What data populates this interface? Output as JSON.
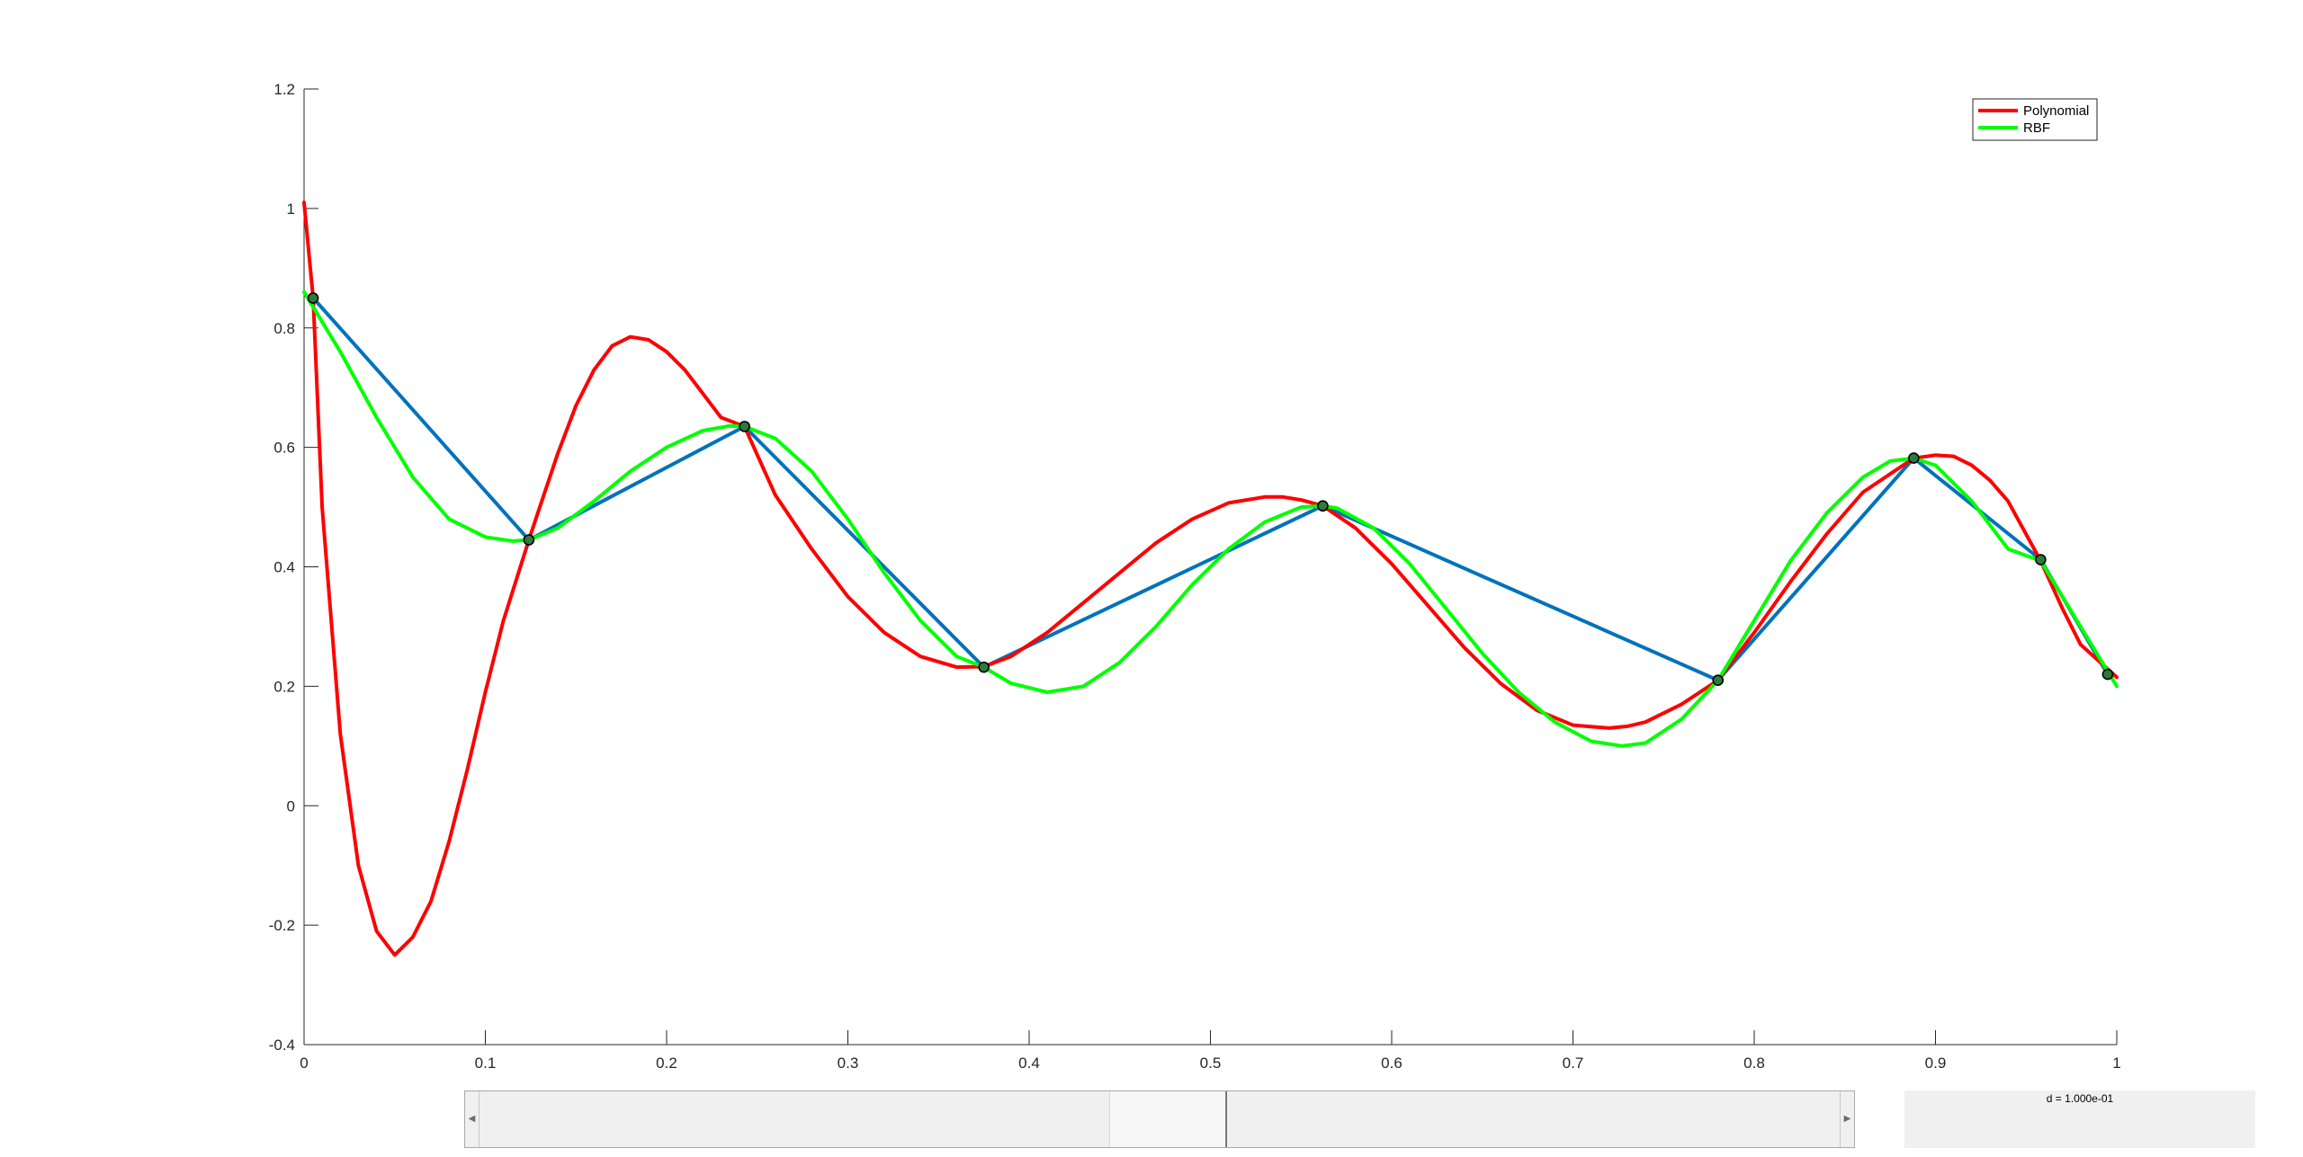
{
  "chart_data": {
    "type": "line",
    "title": "",
    "xlabel": "",
    "ylabel": "",
    "xlim": [
      0,
      1
    ],
    "ylim": [
      -0.4,
      1.2
    ],
    "xticks": [
      "0",
      "0.1",
      "0.2",
      "0.3",
      "0.4",
      "0.5",
      "0.6",
      "0.7",
      "0.8",
      "0.9",
      "1"
    ],
    "yticks": [
      "-0.4",
      "-0.2",
      "0",
      "0.2",
      "0.4",
      "0.6",
      "0.8",
      "1",
      "1.2"
    ],
    "grid": false,
    "legend": {
      "placement": "top-right",
      "entries": [
        "Polynomial",
        "RBF"
      ]
    },
    "series": [
      {
        "name": "Polynomial",
        "color": "#ff0000",
        "x": [
          0,
          0.005,
          0.01,
          0.02,
          0.03,
          0.04,
          0.05,
          0.06,
          0.07,
          0.08,
          0.09,
          0.1,
          0.11,
          0.124,
          0.13,
          0.14,
          0.15,
          0.16,
          0.17,
          0.18,
          0.19,
          0.2,
          0.21,
          0.22,
          0.23,
          0.243,
          0.26,
          0.28,
          0.3,
          0.32,
          0.34,
          0.36,
          0.375,
          0.39,
          0.41,
          0.43,
          0.45,
          0.47,
          0.49,
          0.51,
          0.53,
          0.54,
          0.55,
          0.562,
          0.58,
          0.6,
          0.62,
          0.64,
          0.66,
          0.68,
          0.7,
          0.72,
          0.73,
          0.74,
          0.76,
          0.78,
          0.8,
          0.82,
          0.84,
          0.86,
          0.888,
          0.9,
          0.91,
          0.92,
          0.93,
          0.94,
          0.958,
          0.97,
          0.98,
          1.0
        ],
        "y": [
          1.01,
          0.85,
          0.5,
          0.12,
          -0.1,
          -0.21,
          -0.25,
          -0.22,
          -0.16,
          -0.06,
          0.06,
          0.19,
          0.31,
          0.445,
          0.5,
          0.59,
          0.67,
          0.73,
          0.77,
          0.785,
          0.78,
          0.76,
          0.73,
          0.69,
          0.65,
          0.635,
          0.52,
          0.43,
          0.35,
          0.29,
          0.25,
          0.232,
          0.233,
          0.25,
          0.29,
          0.34,
          0.39,
          0.44,
          0.48,
          0.507,
          0.517,
          0.517,
          0.512,
          0.502,
          0.465,
          0.405,
          0.335,
          0.265,
          0.205,
          0.16,
          0.135,
          0.13,
          0.133,
          0.14,
          0.17,
          0.21,
          0.29,
          0.375,
          0.455,
          0.525,
          0.582,
          0.587,
          0.585,
          0.57,
          0.545,
          0.51,
          0.41,
          0.33,
          0.27,
          0.215
        ]
      },
      {
        "name": "RBF",
        "color": "#00ff00",
        "x": [
          0,
          0.02,
          0.04,
          0.06,
          0.08,
          0.1,
          0.115,
          0.124,
          0.14,
          0.16,
          0.18,
          0.2,
          0.22,
          0.235,
          0.243,
          0.26,
          0.28,
          0.3,
          0.32,
          0.34,
          0.36,
          0.375,
          0.39,
          0.41,
          0.43,
          0.45,
          0.47,
          0.49,
          0.51,
          0.53,
          0.55,
          0.562,
          0.57,
          0.59,
          0.61,
          0.63,
          0.65,
          0.67,
          0.69,
          0.71,
          0.727,
          0.74,
          0.76,
          0.78,
          0.8,
          0.82,
          0.84,
          0.86,
          0.875,
          0.888,
          0.9,
          0.92,
          0.94,
          0.958,
          0.97,
          0.98,
          0.99,
          1.0
        ],
        "y": [
          0.86,
          0.76,
          0.65,
          0.55,
          0.48,
          0.45,
          0.443,
          0.445,
          0.465,
          0.51,
          0.56,
          0.6,
          0.628,
          0.636,
          0.635,
          0.615,
          0.56,
          0.48,
          0.39,
          0.31,
          0.25,
          0.232,
          0.205,
          0.19,
          0.2,
          0.24,
          0.3,
          0.37,
          0.43,
          0.475,
          0.5,
          0.502,
          0.498,
          0.465,
          0.405,
          0.33,
          0.255,
          0.19,
          0.14,
          0.108,
          0.1,
          0.105,
          0.145,
          0.21,
          0.31,
          0.41,
          0.49,
          0.55,
          0.577,
          0.582,
          0.57,
          0.51,
          0.43,
          0.41,
          0.35,
          0.3,
          0.25,
          0.2
        ]
      },
      {
        "color": "#0072bd",
        "x": [
          0.005,
          0.124,
          0.243,
          0.375,
          0.562,
          0.78,
          0.888,
          0.958,
          0.995
        ],
        "y": [
          0.85,
          0.445,
          0.635,
          0.232,
          0.502,
          0.21,
          0.582,
          0.412,
          0.22
        ]
      }
    ],
    "markers": {
      "color": "#2d7a3c",
      "x": [
        0.005,
        0.124,
        0.243,
        0.375,
        0.562,
        0.78,
        0.888,
        0.958,
        0.995
      ],
      "y": [
        0.85,
        0.445,
        0.635,
        0.232,
        0.502,
        0.21,
        0.582,
        0.412,
        0.22
      ]
    }
  },
  "controls": {
    "readout": "d = 1.000e-01",
    "slider_value": 0.5
  },
  "icons": {
    "slider_left": "chevron-left-icon",
    "slider_right": "chevron-right-icon"
  }
}
